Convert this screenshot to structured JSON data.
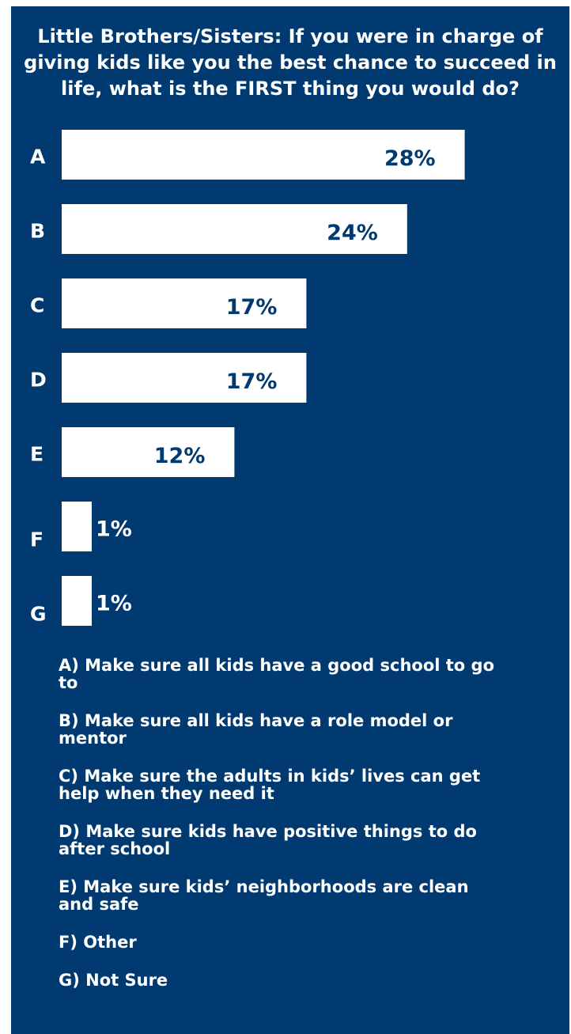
{
  "chart_data": {
    "type": "bar",
    "orientation": "horizontal",
    "title": "Little Brothers/Sisters: If you were in charge of giving kids like you the best chance to succeed in life, what is the FIRST thing you would do?",
    "categories": [
      "A",
      "B",
      "C",
      "D",
      "E",
      "F",
      "G"
    ],
    "values": [
      28,
      24,
      17,
      17,
      12,
      1,
      1
    ],
    "value_labels": [
      "28%",
      "24%",
      "17%",
      "17%",
      "12%",
      "1%",
      "1%"
    ],
    "unit": "%",
    "xlim": [
      0,
      30
    ],
    "grid": false,
    "colors": {
      "background": "#003a70",
      "bar": "#ffffff",
      "text": "#ffffff",
      "label_inside": "#003a70"
    },
    "legend": [
      "A) Make sure all kids have a good school to go to",
      "B) Make sure all kids have a role model or mentor",
      "C) Make sure the adults in kids’ lives can get help when they need it",
      "D) Make sure kids have positive things to do after school",
      "E) Make sure kids’ neighborhoods are clean and safe",
      "F) Other",
      "G) Not Sure"
    ]
  }
}
